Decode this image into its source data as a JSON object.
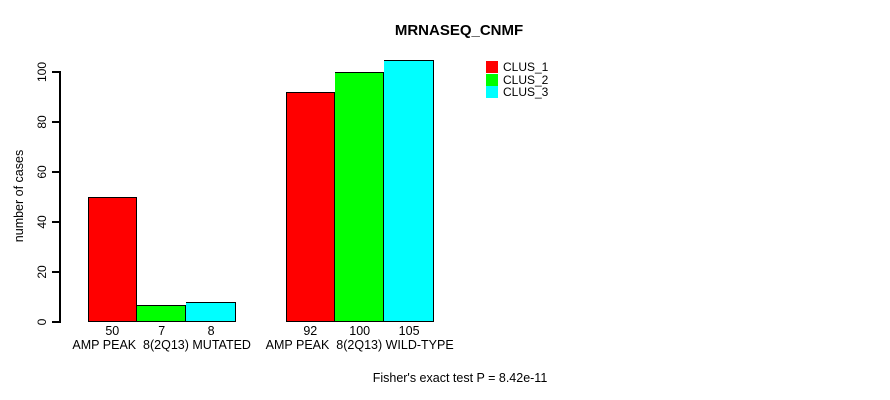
{
  "chart_data": {
    "type": "bar",
    "title": "MRNASEQ_CNMF",
    "ylabel": "number of cases",
    "xlabel": "",
    "categories": [
      "AMP PEAK  8(2Q13) MUTATED",
      "AMP PEAK  8(2Q13) WILD-TYPE"
    ],
    "series": [
      {
        "name": "CLUS_1",
        "color": "#FF0000",
        "values": [
          50,
          92
        ]
      },
      {
        "name": "CLUS_2",
        "color": "#00FF00",
        "values": [
          7,
          100
        ]
      },
      {
        "name": "CLUS_3",
        "color": "#00FFFF",
        "values": [
          8,
          105
        ]
      }
    ],
    "bar_value_labels": [
      [
        50,
        7,
        8
      ],
      [
        92,
        100,
        105
      ]
    ],
    "y_ticks": [
      0,
      20,
      40,
      60,
      80,
      100
    ],
    "ylim": [
      0,
      105
    ],
    "grid": false,
    "legend": {
      "position": "top-right",
      "entries": [
        "CLUS_1",
        "CLUS_2",
        "CLUS_3"
      ]
    },
    "annotation": "Fisher's exact test P = 8.42e-11",
    "colors": {
      "background": "#FFFFFF",
      "text": "#000000",
      "axis": "#000000"
    }
  }
}
